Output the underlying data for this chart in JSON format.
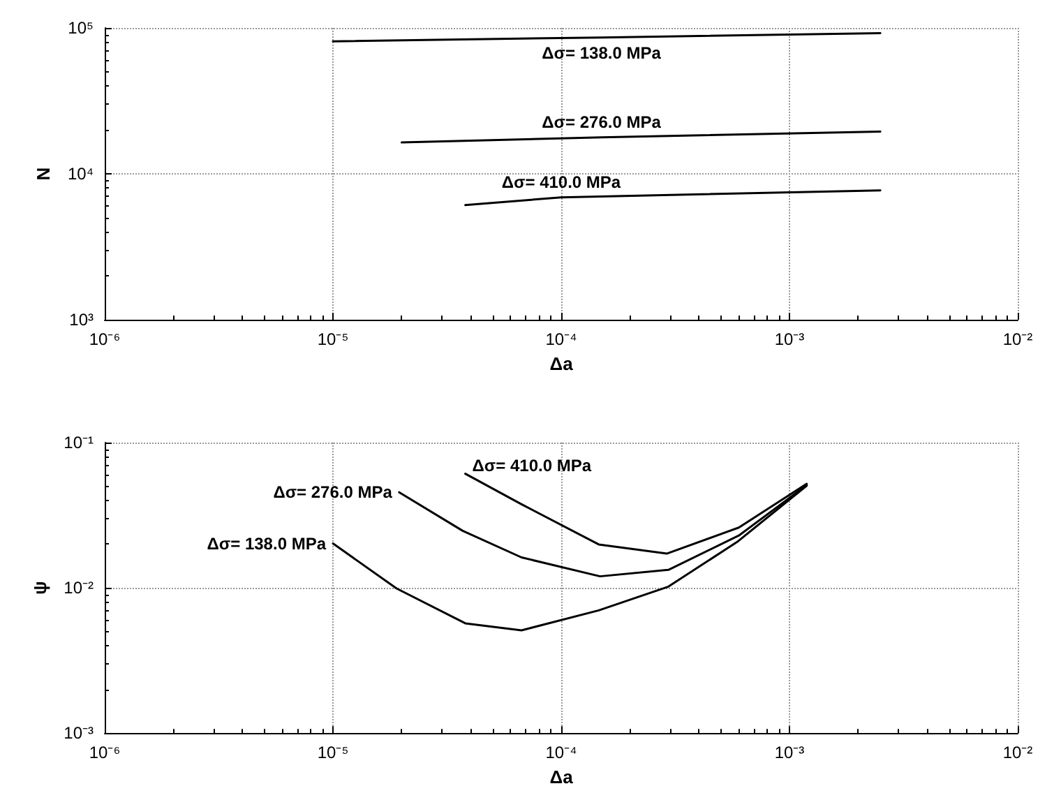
{
  "chart_data": [
    {
      "type": "line",
      "xlabel": "Δa",
      "ylabel": "N",
      "log": "xy",
      "grid": true,
      "marker": "none",
      "line_style": "solid",
      "xlim": [
        1e-06,
        0.01
      ],
      "ylim": [
        1000,
        100000
      ],
      "xticks": [
        {
          "value": 1e-06,
          "label": "10⁻⁶"
        },
        {
          "value": 1e-05,
          "label": "10⁻⁵"
        },
        {
          "value": 0.0001,
          "label": "10⁻⁴"
        },
        {
          "value": 0.001,
          "label": "10⁻³"
        },
        {
          "value": 0.01,
          "label": "10⁻²"
        }
      ],
      "yticks": [
        {
          "value": 1000,
          "label": "10³"
        },
        {
          "value": 10000,
          "label": "10⁴"
        },
        {
          "value": 100000,
          "label": "10⁵"
        }
      ],
      "series": [
        {
          "name": "Δσ= 138.0 MPa",
          "color": "#000000",
          "x": [
            1e-05,
            0.00015,
            0.0025
          ],
          "values": [
            81000,
            86000,
            92000
          ]
        },
        {
          "name": "Δσ= 276.0 MPa",
          "color": "#000000",
          "x": [
            2e-05,
            0.00015,
            0.0025
          ],
          "values": [
            16400,
            17800,
            19500
          ]
        },
        {
          "name": "Δσ= 410.0 MPa",
          "color": "#000000",
          "x": [
            3.8e-05,
            0.0001,
            0.0025
          ],
          "values": [
            6100,
            6900,
            7700
          ]
        }
      ]
    },
    {
      "type": "line",
      "xlabel": "Δa",
      "ylabel": "ψ",
      "log": "xy",
      "grid": true,
      "marker": "none",
      "line_style": "solid",
      "xlim": [
        1e-06,
        0.01
      ],
      "ylim": [
        0.001,
        0.1
      ],
      "xticks": [
        {
          "value": 1e-06,
          "label": "10⁻⁶"
        },
        {
          "value": 1e-05,
          "label": "10⁻⁵"
        },
        {
          "value": 0.0001,
          "label": "10⁻⁴"
        },
        {
          "value": 0.001,
          "label": "10⁻³"
        },
        {
          "value": 0.01,
          "label": "10⁻²"
        }
      ],
      "yticks": [
        {
          "value": 0.001,
          "label": "10⁻³"
        },
        {
          "value": 0.01,
          "label": "10⁻²"
        },
        {
          "value": 0.1,
          "label": "10⁻¹"
        }
      ],
      "series": [
        {
          "name": "Δσ= 138.0 MPa",
          "color": "#000000",
          "x": [
            1e-05,
            1.9e-05,
            3.8e-05,
            6.7e-05,
            0.000146,
            0.000295,
            0.00059,
            0.00119
          ],
          "values": [
            0.0202,
            0.0099,
            0.0057,
            0.0051,
            0.007,
            0.0102,
            0.0207,
            0.0505
          ]
        },
        {
          "name": "Δσ= 276.0 MPa",
          "color": "#000000",
          "x": [
            1.95e-05,
            3.7e-05,
            6.7e-05,
            0.000148,
            0.000295,
            0.0006,
            0.00119
          ],
          "values": [
            0.0455,
            0.0247,
            0.0162,
            0.012,
            0.0133,
            0.0229,
            0.051
          ]
        },
        {
          "name": "Δσ= 410.0 MPa",
          "color": "#000000",
          "x": [
            3.8e-05,
            6.7e-05,
            0.000146,
            0.00029,
            0.0006,
            0.00119
          ],
          "values": [
            0.061,
            0.0376,
            0.0199,
            0.0172,
            0.026,
            0.052
          ]
        }
      ]
    }
  ]
}
